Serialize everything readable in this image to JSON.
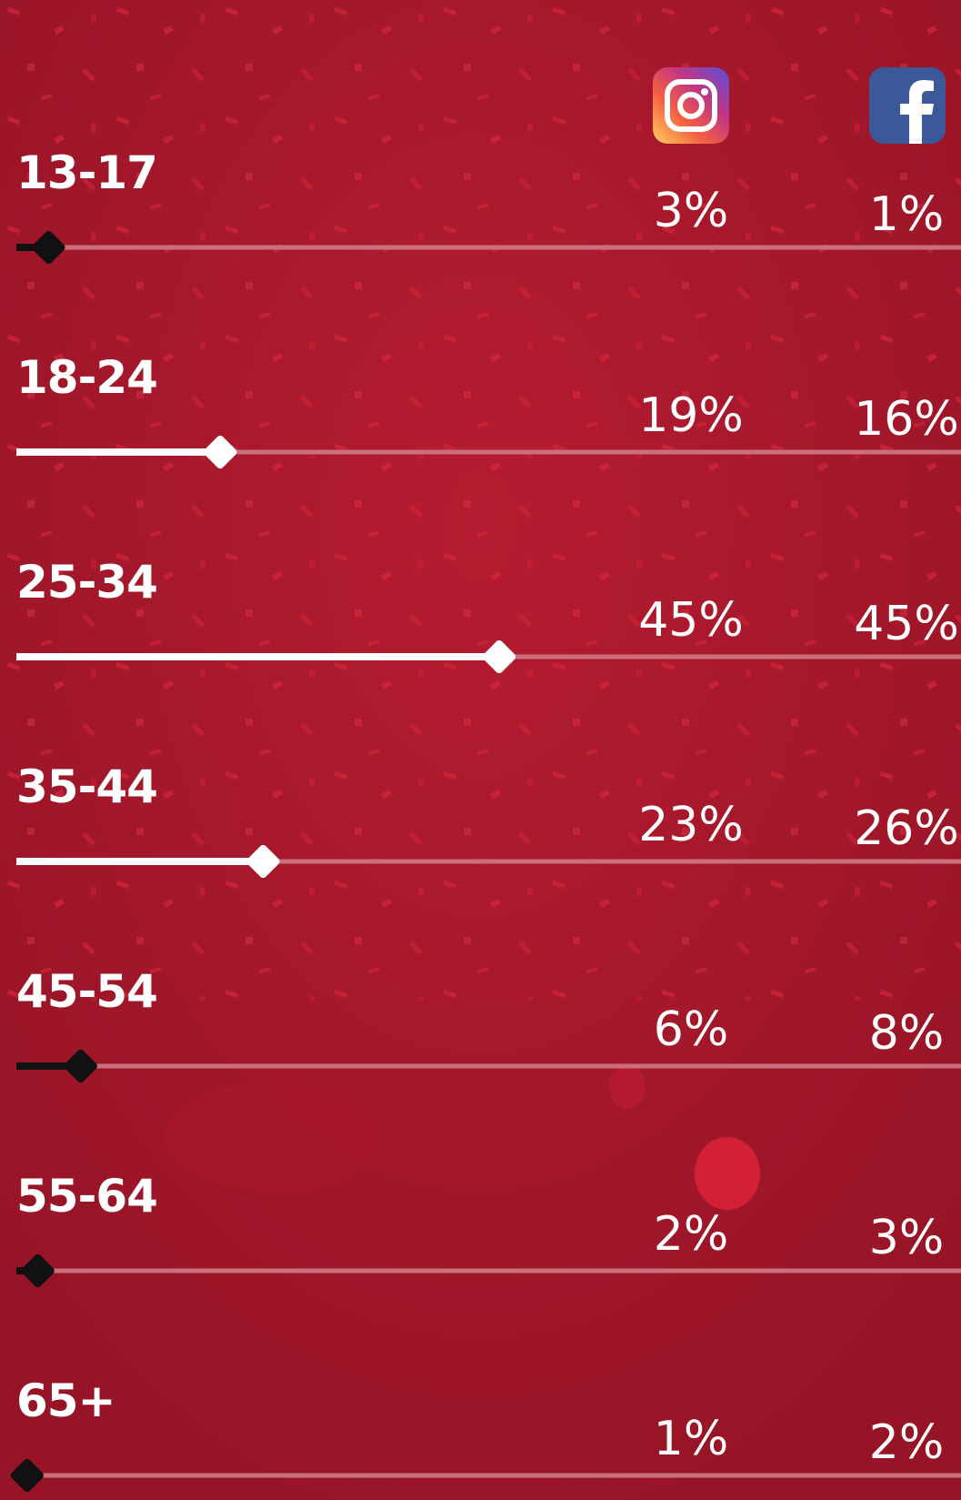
{
  "chart_data": {
    "type": "bar",
    "categories": [
      "13-17",
      "18-24",
      "25-34",
      "35-44",
      "45-54",
      "55-64",
      "65+"
    ],
    "series": [
      {
        "name": "Instagram",
        "values": [
          3,
          19,
          45,
          23,
          6,
          2,
          1
        ],
        "labels": [
          "3%",
          "19%",
          "45%",
          "23%",
          "6%",
          "2%",
          "1%"
        ]
      },
      {
        "name": "Facebook",
        "values": [
          1,
          16,
          45,
          26,
          8,
          3,
          2
        ],
        "labels": [
          "1%",
          "16%",
          "45%",
          "26%",
          "8%",
          "3%",
          "2%"
        ]
      }
    ],
    "slider_values": [
      3,
      19,
      45,
      23,
      6,
      2,
      1
    ],
    "slider_max": 100,
    "slider_colors": [
      "#111111",
      "#ffffff",
      "#ffffff",
      "#ffffff",
      "#111111",
      "#111111",
      "#111111"
    ]
  },
  "icons": {
    "instagram": "instagram-icon",
    "facebook": "facebook-icon"
  },
  "colors": {
    "background": "#9c1628",
    "track": "#c9707c",
    "text": "#ffffff"
  }
}
